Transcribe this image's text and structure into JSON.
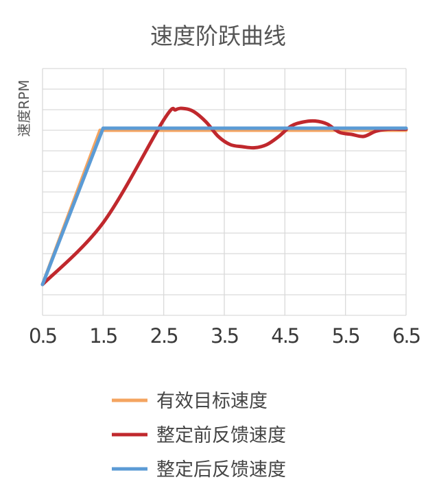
{
  "chart_data": {
    "type": "line",
    "title": "速度阶跃曲线",
    "xlabel": "",
    "ylabel": "速度RPM",
    "xticks": [
      "0.5",
      "1.5",
      "2.5",
      "3.5",
      "4.5",
      "5.5",
      "6.5"
    ],
    "xlim": [
      0.5,
      6.5
    ],
    "ylim": [
      -0.15,
      1.05
    ],
    "y_gridlines": [
      -0.15,
      -0.05,
      0.05,
      0.15,
      0.25,
      0.35,
      0.45,
      0.55,
      0.65,
      0.75,
      0.85,
      0.95,
      1.05
    ],
    "grid": true,
    "legend_position": "bottom",
    "series": [
      {
        "name": "有效目标速度",
        "color": "#F4A460",
        "x": [
          0.5,
          1.45,
          6.5
        ],
        "y": [
          0.0,
          0.75,
          0.75
        ]
      },
      {
        "name": "整定前反馈速度",
        "color": "#C0282D",
        "x": [
          0.5,
          1.5,
          2.5,
          2.7,
          2.85,
          3.0,
          3.2,
          3.4,
          3.6,
          3.8,
          4.0,
          4.2,
          4.4,
          4.6,
          4.8,
          5.0,
          5.2,
          5.4,
          5.6,
          5.8,
          6.0,
          6.2,
          6.4,
          6.5
        ],
        "y": [
          0.0,
          0.3,
          0.8,
          0.85,
          0.855,
          0.84,
          0.79,
          0.72,
          0.68,
          0.67,
          0.665,
          0.68,
          0.72,
          0.77,
          0.79,
          0.795,
          0.78,
          0.74,
          0.73,
          0.72,
          0.745,
          0.755,
          0.755,
          0.755
        ]
      },
      {
        "name": "整定后反馈速度",
        "color": "#5B9BD5",
        "x": [
          0.5,
          1.5,
          6.5
        ],
        "y": [
          0.0,
          0.76,
          0.76
        ]
      }
    ]
  }
}
